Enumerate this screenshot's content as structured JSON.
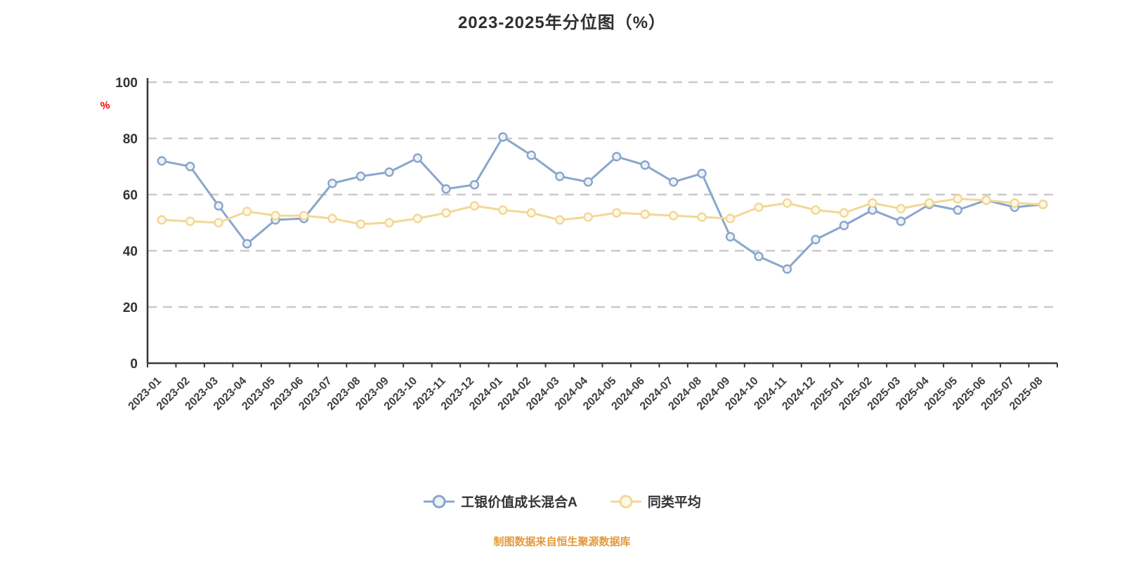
{
  "title": "2023-2025年分位图（%）",
  "annotation": {
    "text": "%",
    "color": "#ff0000"
  },
  "footer": "制图数据来自恒生聚源数据库",
  "legend": [
    {
      "label": "工银价值成长混合A",
      "color": "#8aa6cc",
      "marker_fill": "#eef2f8"
    },
    {
      "label": "同类平均",
      "color": "#f2d896",
      "marker_fill": "#fdf8ea"
    }
  ],
  "axis": {
    "color": "#3a3a3a",
    "grid_color": "#c9c9c9",
    "label_color": "#3f3f3f"
  },
  "chart_data": {
    "type": "line",
    "title": "2023-2025年分位图（%）",
    "xlabel": "",
    "ylabel": "",
    "ylim": [
      0,
      100
    ],
    "yticks": [
      0,
      20,
      40,
      60,
      80,
      100
    ],
    "grid": "horizontal-dashed",
    "legend_position": "bottom",
    "categories": [
      "2023-01",
      "2023-02",
      "2023-03",
      "2023-04",
      "2023-05",
      "2023-06",
      "2023-07",
      "2023-08",
      "2023-09",
      "2023-10",
      "2023-11",
      "2023-12",
      "2024-01",
      "2024-02",
      "2024-03",
      "2024-04",
      "2024-05",
      "2024-06",
      "2024-07",
      "2024-08",
      "2024-09",
      "2024-10",
      "2024-11",
      "2024-12",
      "2025-01",
      "2025-02",
      "2025-03",
      "2025-04",
      "2025-05",
      "2025-06",
      "2025-07",
      "2025-08"
    ],
    "series": [
      {
        "name": "工银价值成长混合A",
        "color": "#8aa6cc",
        "marker_fill": "#eef2f8",
        "values": [
          72,
          70,
          56,
          42.5,
          51,
          51.5,
          64,
          66.5,
          68,
          73,
          62,
          63.5,
          80.5,
          74,
          66.5,
          64.5,
          73.5,
          70.5,
          64.5,
          67.5,
          45,
          38,
          33.5,
          44,
          49,
          54.5,
          50.5,
          56.5,
          54.5,
          58,
          55.5,
          56.5
        ]
      },
      {
        "name": "同类平均",
        "color": "#f2d896",
        "marker_fill": "#fdf8ea",
        "values": [
          51,
          50.5,
          50,
          54,
          52.5,
          52.5,
          51.5,
          49.5,
          50,
          51.5,
          53.5,
          56,
          54.5,
          53.5,
          51,
          52,
          53.5,
          53,
          52.5,
          52,
          51.5,
          55.5,
          57,
          54.5,
          53.5,
          57,
          55,
          57,
          58.5,
          58,
          57,
          56.5
        ]
      }
    ]
  }
}
